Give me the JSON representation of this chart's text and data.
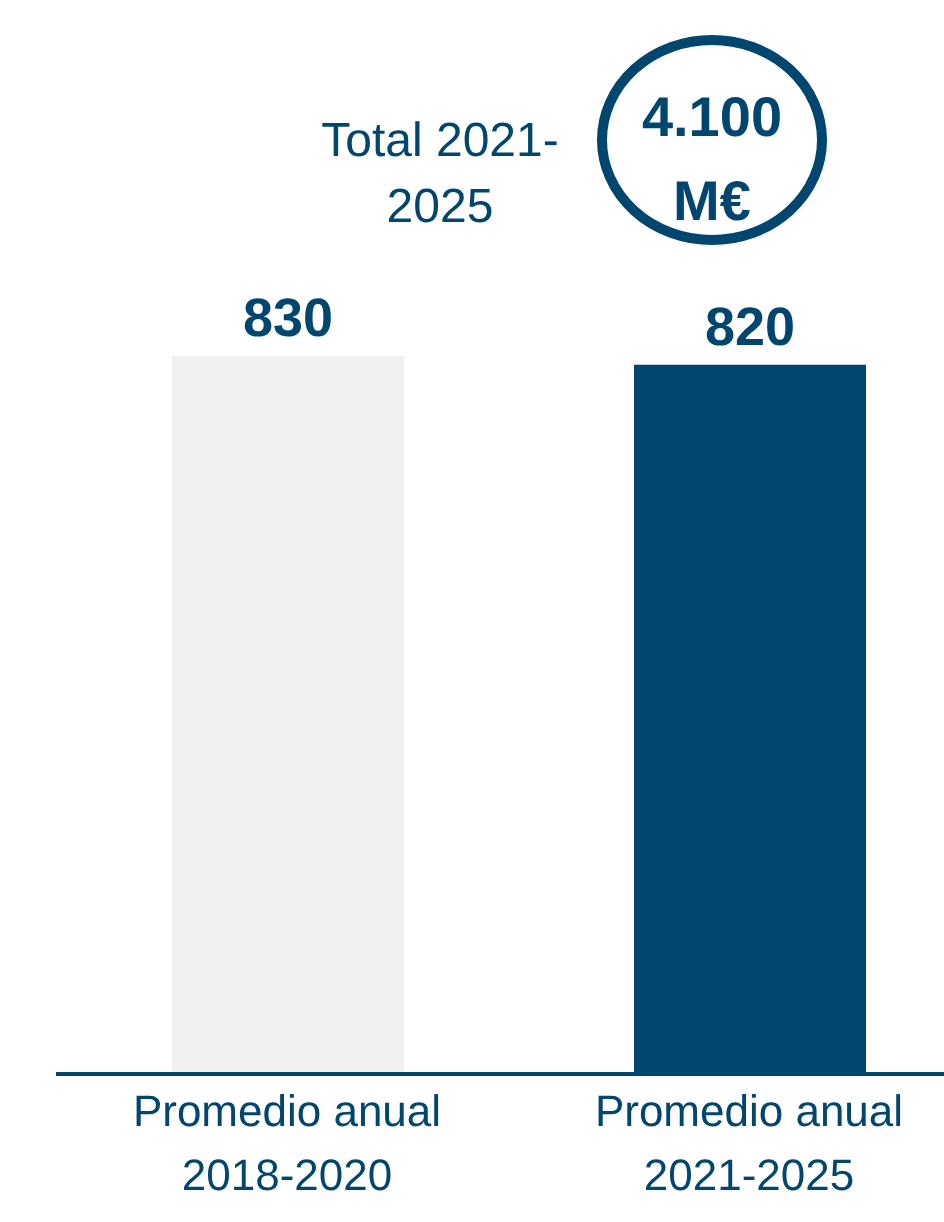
{
  "chart_data": {
    "type": "bar",
    "categories": [
      "Promedio anual 2018-2020",
      "Promedio anual 2021-2025"
    ],
    "values": [
      830,
      820
    ],
    "colors": [
      "#f0f0f0",
      "#00466e"
    ],
    "data_labels": true,
    "annotations": [
      "Total 2021-2025",
      "4.100 M€"
    ]
  }
}
